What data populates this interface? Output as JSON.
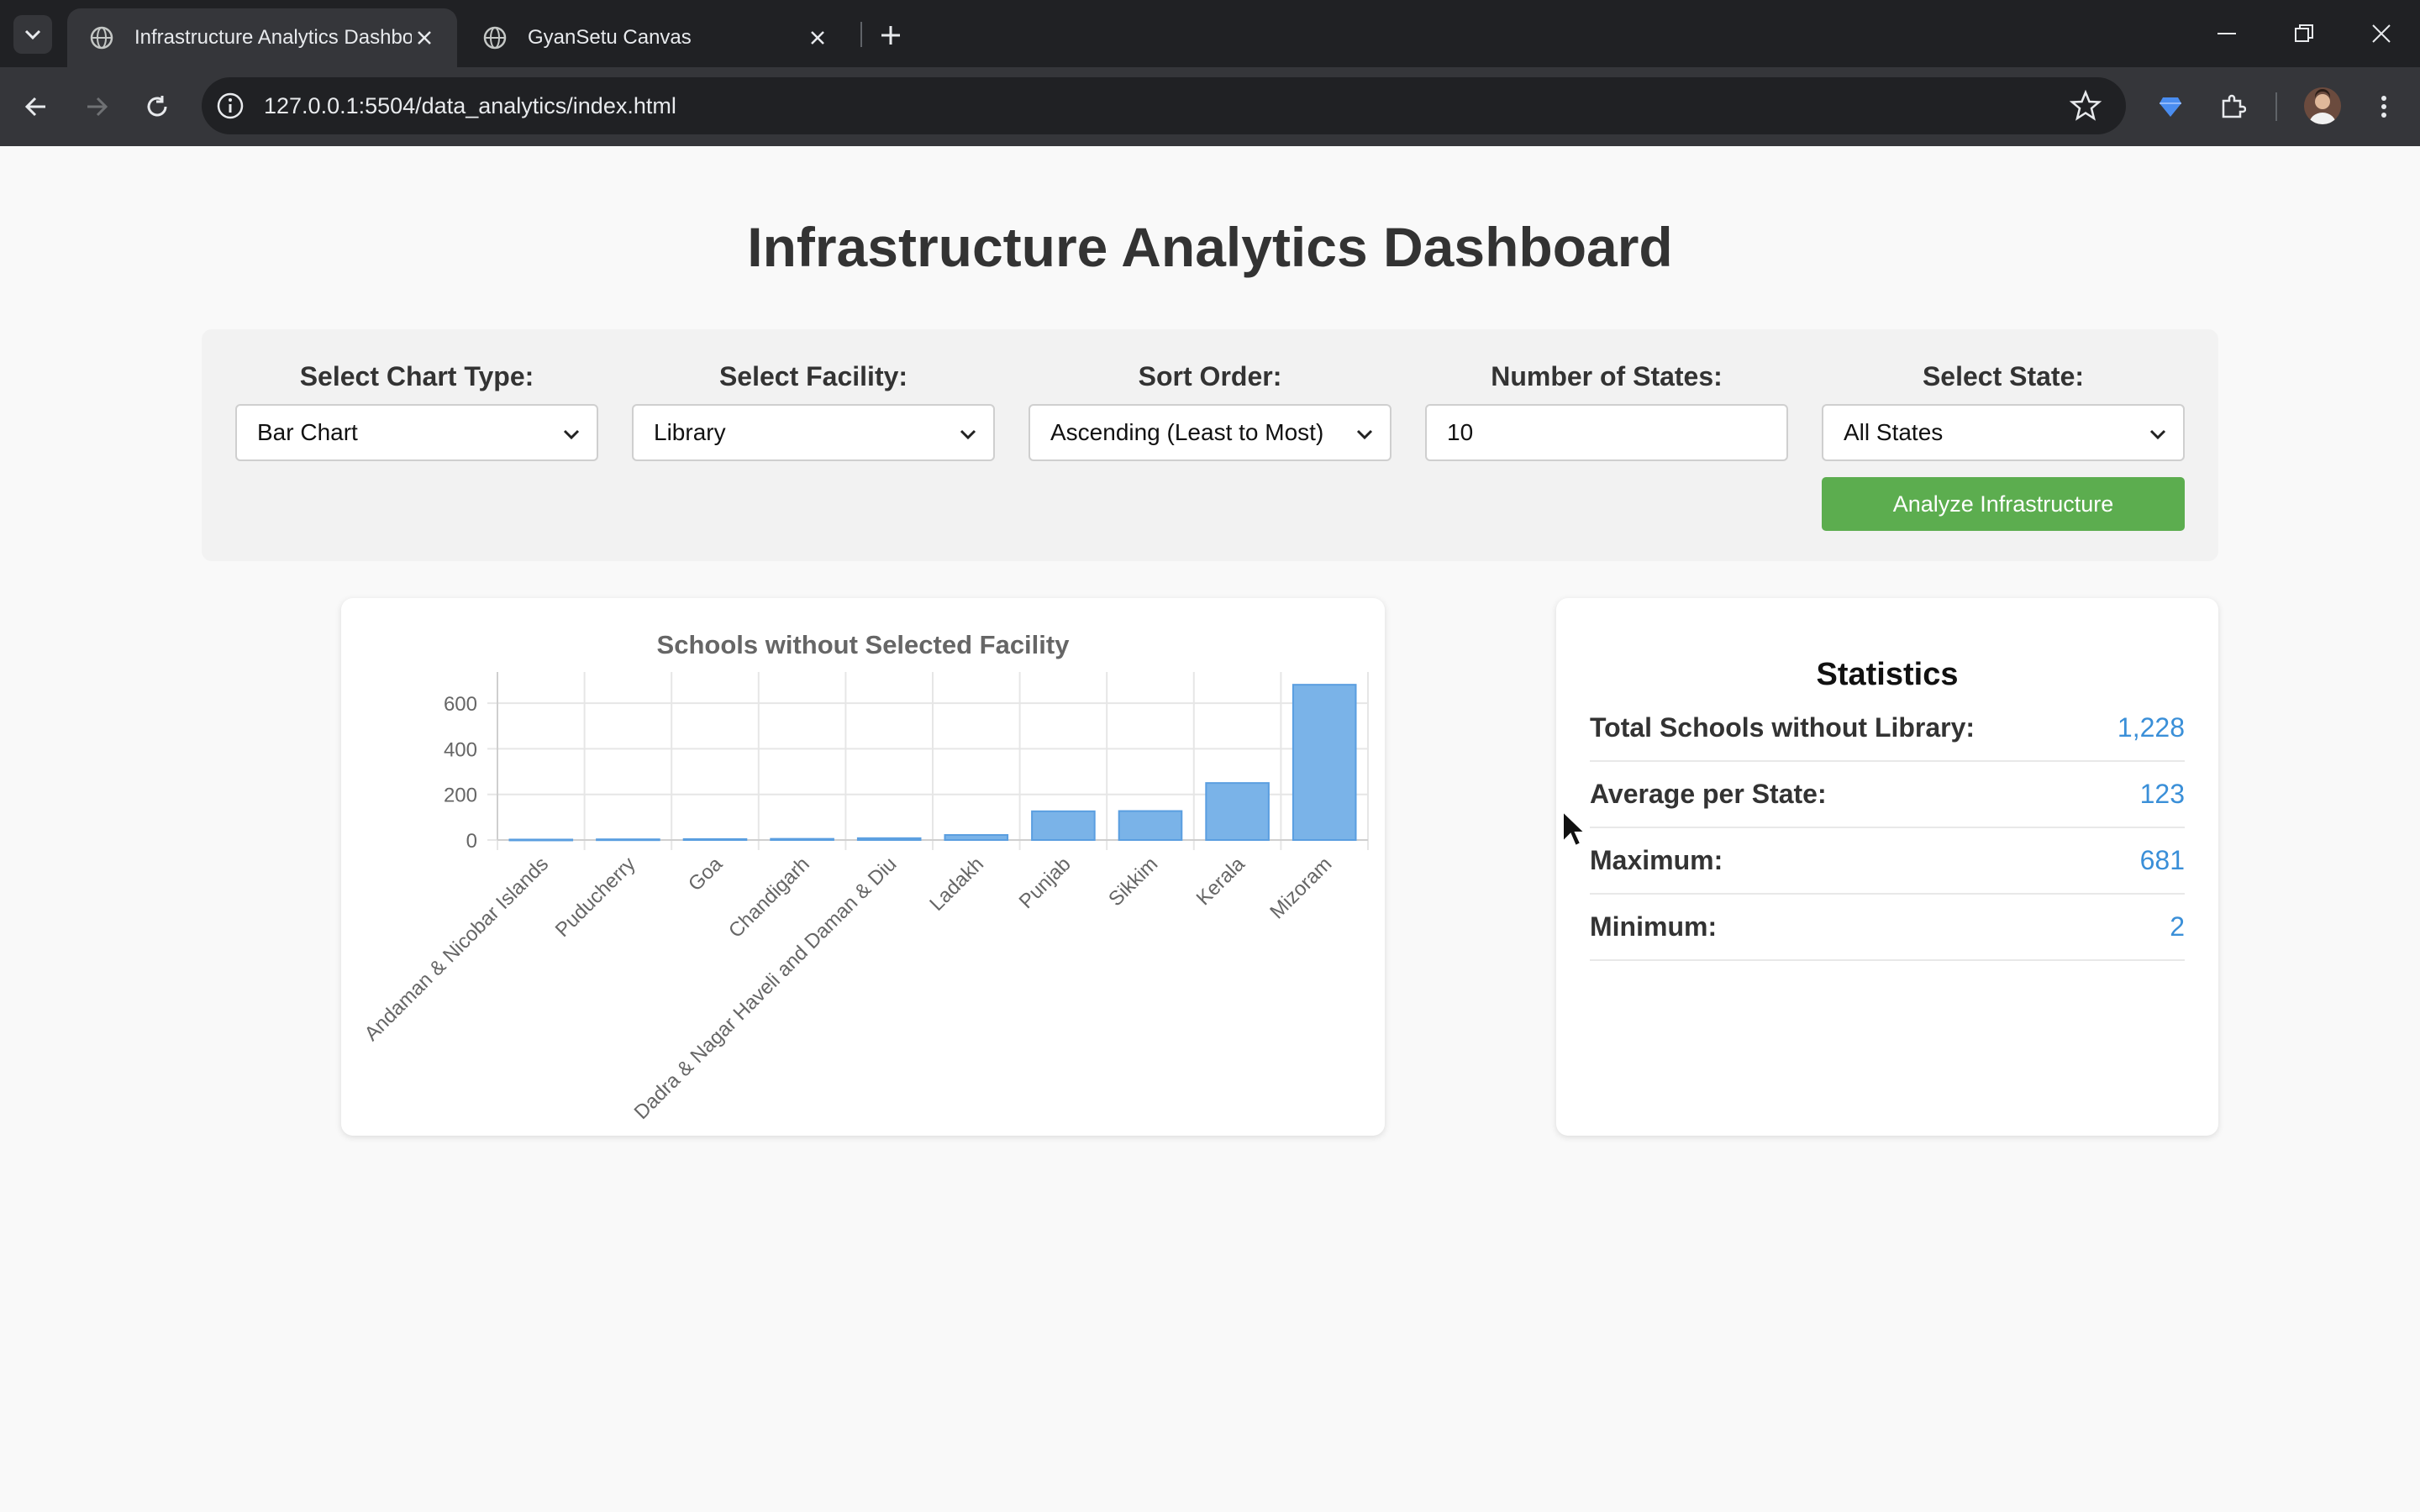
{
  "browser": {
    "tabs": [
      {
        "title": "Infrastructure Analytics Dashboard",
        "active": true
      },
      {
        "title": "GyanSetu Canvas",
        "active": false
      }
    ],
    "url": "127.0.0.1:5504/data_analytics/index.html"
  },
  "page": {
    "title": "Infrastructure Analytics Dashboard",
    "controls": {
      "chart_type": {
        "label": "Select Chart Type:",
        "value": "Bar Chart"
      },
      "facility": {
        "label": "Select Facility:",
        "value": "Library"
      },
      "sort_order": {
        "label": "Sort Order:",
        "value": "Ascending (Least to Most)"
      },
      "num_states": {
        "label": "Number of States:",
        "value": "10"
      },
      "state": {
        "label": "Select State:",
        "value": "All States"
      },
      "analyze_button": "Analyze Infrastructure"
    },
    "statistics": {
      "title": "Statistics",
      "rows": [
        {
          "label": "Total Schools without Library:",
          "value": "1,228"
        },
        {
          "label": "Average per State:",
          "value": "123"
        },
        {
          "label": "Maximum:",
          "value": "681"
        },
        {
          "label": "Minimum:",
          "value": "2"
        }
      ]
    }
  },
  "colors": {
    "bar_fill": "#7ab3e8",
    "bar_stroke": "#5a9ee0",
    "button_green": "#5cad4f",
    "stat_value": "#3a8fd8"
  },
  "chart_data": {
    "type": "bar",
    "title": "Schools without Selected Facility",
    "categories": [
      "Andaman & Nicobar Islands",
      "Puducherry",
      "Goa",
      "Chandigarh",
      "Dadra & Nagar Haveli and Daman & Diu",
      "Ladakh",
      "Punjab",
      "Sikkim",
      "Kerala",
      "Mizoram"
    ],
    "values": [
      2,
      3,
      4,
      5,
      8,
      22,
      126,
      127,
      250,
      681
    ],
    "yticks": [
      0,
      200,
      400,
      600
    ],
    "ylim": [
      0,
      700
    ],
    "grid": true,
    "legend": "none"
  }
}
